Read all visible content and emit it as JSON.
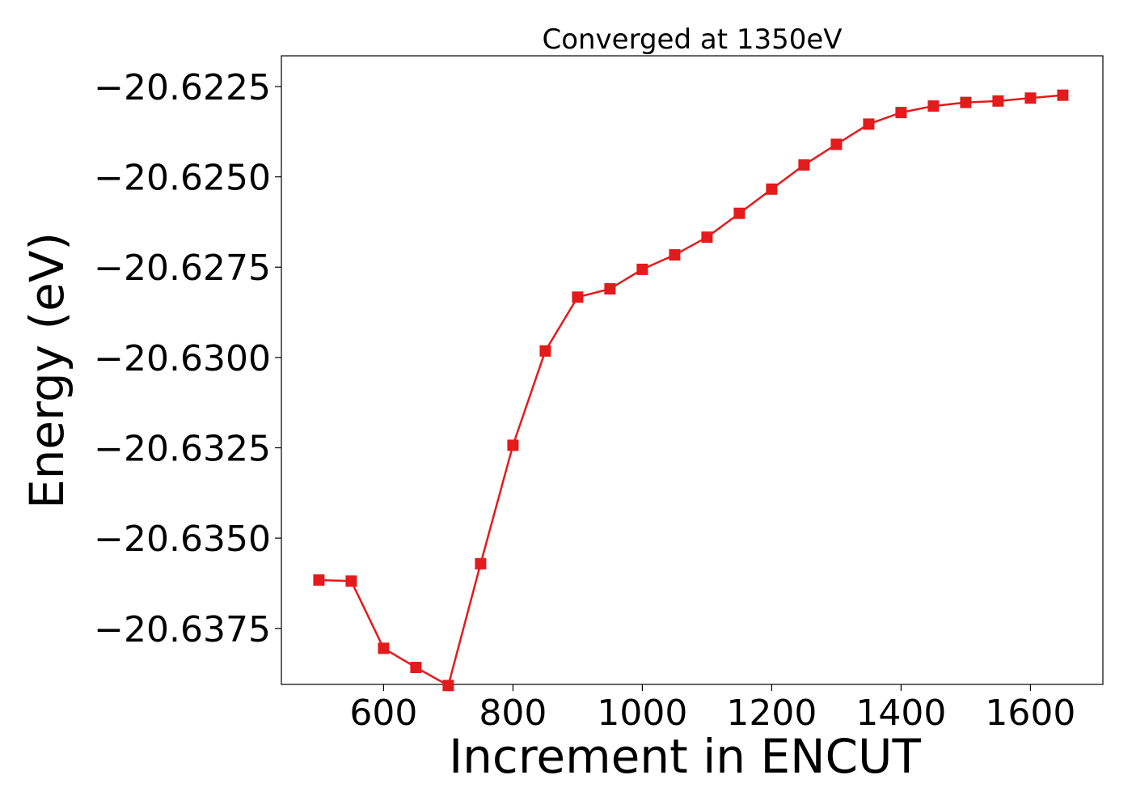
{
  "chart_data": {
    "type": "line",
    "title": "Converged at 1350eV",
    "xlabel": "Increment in ENCUT",
    "ylabel": "Energy (eV)",
    "xlim": [
      442,
      1712
    ],
    "ylim": [
      -20.63905,
      -20.62165
    ],
    "xticks": [
      600,
      800,
      1000,
      1200,
      1400,
      1600
    ],
    "xtick_labels": [
      "600",
      "800",
      "1000",
      "1200",
      "1400",
      "1600"
    ],
    "yticks": [
      -20.6375,
      -20.635,
      -20.6325,
      -20.63,
      -20.6275,
      -20.625,
      -20.6225
    ],
    "ytick_labels": [
      "−20.6375",
      "−20.6350",
      "−20.6325",
      "−20.6300",
      "−20.6275",
      "−20.6250",
      "−20.6225"
    ],
    "grid": false,
    "legend": "none",
    "series": [
      {
        "color": "#e41a1c",
        "marker": "square",
        "x": [
          500,
          550,
          600,
          650,
          700,
          750,
          800,
          850,
          900,
          950,
          1000,
          1050,
          1100,
          1150,
          1200,
          1250,
          1300,
          1350,
          1400,
          1450,
          1500,
          1550,
          1600,
          1650
        ],
        "y": [
          -20.63616,
          -20.63619,
          -20.63805,
          -20.63858,
          -20.63908,
          -20.63571,
          -20.63243,
          -20.62982,
          -20.62833,
          -20.6281,
          -20.62756,
          -20.62716,
          -20.62667,
          -20.62601,
          -20.62534,
          -20.62467,
          -20.6241,
          -20.62354,
          -20.62322,
          -20.62304,
          -20.62294,
          -20.6229,
          -20.62282,
          -20.62274
        ]
      }
    ]
  }
}
